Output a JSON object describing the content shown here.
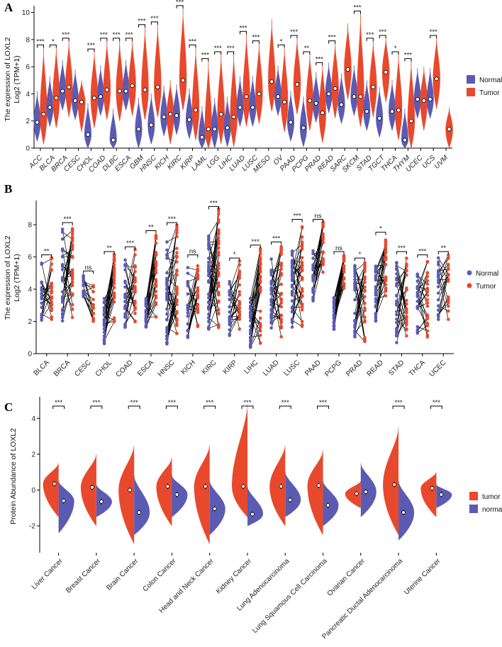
{
  "colors": {
    "normal": "#5b5bb3",
    "tumor": "#e8492c",
    "line": "#000000"
  },
  "chart_data": [
    {
      "panel": "A",
      "type": "violin",
      "ylabel_line1": "The expression of LOXL2",
      "ylabel_line2": "Log2 (TPM+1)",
      "ylim": [
        0,
        10.5
      ],
      "yticks": [
        0,
        2,
        4,
        6,
        8,
        10
      ],
      "legend": [
        "Normal",
        "Tumor"
      ],
      "legend_position": "right",
      "categories": [
        "ACC",
        "BLCA",
        "BRCA",
        "CESC",
        "CHOL",
        "COAD",
        "DLBC",
        "ESCA",
        "GBM",
        "HNSC",
        "KICH",
        "KIRC",
        "KIRP",
        "LAML",
        "LGG",
        "LIHC",
        "LUAD",
        "LUSC",
        "MESO",
        "OV",
        "PAAD",
        "PCPG",
        "PRAD",
        "READ",
        "SARC",
        "SKCM",
        "STAD",
        "TGCT",
        "THCA",
        "THYM",
        "UCEC",
        "UCS",
        "UVM"
      ],
      "normal_median": [
        1.9,
        3.0,
        4.2,
        3.5,
        1.0,
        3.8,
        0.6,
        4.2,
        1.4,
        1.7,
        2.3,
        2.4,
        2.1,
        0.8,
        1.4,
        1.5,
        3.0,
        3.0,
        null,
        3.8,
        1.9,
        1.5,
        3.3,
        4.0,
        3.2,
        3.8,
        2.7,
        2.2,
        2.7,
        0.6,
        3.6,
        3.6,
        null
      ],
      "tumor_median": [
        2.5,
        3.7,
        4.5,
        3.4,
        3.7,
        4.3,
        4.2,
        4.6,
        4.3,
        4.5,
        2.5,
        5.0,
        2.8,
        1.4,
        2.5,
        2.3,
        3.8,
        4.0,
        4.9,
        3.4,
        4.7,
        3.5,
        2.6,
        4.4,
        5.8,
        3.8,
        4.5,
        5.6,
        2.8,
        2.0,
        3.5,
        5.1,
        1.4
      ],
      "tumor_top": [
        7.5,
        7.5,
        8.0,
        5.0,
        7.2,
        8.0,
        8.0,
        8.0,
        9.0,
        9.2,
        5.0,
        10.4,
        7.5,
        6.5,
        7.0,
        7.0,
        8.5,
        7.8,
        9.5,
        7.5,
        8.2,
        7.0,
        6.2,
        7.8,
        9.2,
        10.0,
        8.0,
        8.2,
        7.0,
        6.5,
        6.0,
        8.2,
        3.0
      ],
      "significance": [
        "***",
        "*",
        "***",
        "",
        "***",
        "***",
        "***",
        "***",
        "***",
        "***",
        "",
        "***",
        "***",
        "***",
        "***",
        "***",
        "***",
        "***",
        "",
        "*",
        "***",
        "**",
        "***",
        "***",
        "",
        "***",
        "***",
        "***",
        "*",
        "***",
        "",
        "***",
        ""
      ]
    },
    {
      "panel": "B",
      "type": "paired-scatter",
      "ylabel_line1": "The expression of LOXL2",
      "ylabel_line2": "Log2 (TPM+1)",
      "ylim": [
        0,
        9.5
      ],
      "yticks": [
        0,
        2,
        4,
        6,
        8
      ],
      "legend": [
        "Normal",
        "Tumor"
      ],
      "legend_position": "right",
      "categories": [
        "BLCA",
        "BRCA",
        "CESC",
        "CHOL",
        "COAD",
        "ESCA",
        "HNSC",
        "KICH",
        "KIRC",
        "KIRP",
        "LIHC",
        "LUAD",
        "LUSC",
        "PAAD",
        "PCPG",
        "PRAD",
        "READ",
        "STAD",
        "THCA",
        "UCEC"
      ],
      "normal_range": [
        [
          1.8,
          5.8
        ],
        [
          2.0,
          8.0
        ],
        [
          3.5,
          5.0
        ],
        [
          0.6,
          3.5
        ],
        [
          1.5,
          6.0
        ],
        [
          1.5,
          3.5
        ],
        [
          0.6,
          7.2
        ],
        [
          1.0,
          5.5
        ],
        [
          1.5,
          7.5
        ],
        [
          1.0,
          4.5
        ],
        [
          0.2,
          3.5
        ],
        [
          1.5,
          6.0
        ],
        [
          1.5,
          6.5
        ],
        [
          3.2,
          6.5
        ],
        [
          1.5,
          3.5
        ],
        [
          1.0,
          5.5
        ],
        [
          2.0,
          5.5
        ],
        [
          0.6,
          5.8
        ],
        [
          1.0,
          5.0
        ],
        [
          2.0,
          6.0
        ]
      ],
      "tumor_range": [
        [
          1.8,
          6.0
        ],
        [
          2.0,
          7.8
        ],
        [
          2.0,
          4.5
        ],
        [
          1.5,
          6.2
        ],
        [
          1.8,
          6.5
        ],
        [
          2.0,
          7.5
        ],
        [
          1.2,
          8.0
        ],
        [
          1.2,
          6.0
        ],
        [
          1.5,
          9.0
        ],
        [
          1.5,
          5.8
        ],
        [
          0.6,
          6.6
        ],
        [
          1.0,
          6.8
        ],
        [
          1.5,
          8.2
        ],
        [
          5.0,
          8.2
        ],
        [
          4.0,
          6.2
        ],
        [
          0.6,
          5.8
        ],
        [
          3.5,
          7.4
        ],
        [
          1.0,
          6.2
        ],
        [
          1.0,
          6.0
        ],
        [
          2.0,
          6.2
        ]
      ],
      "significance": [
        "**",
        "***",
        "ns",
        "**",
        "***",
        "**",
        "***",
        "ns",
        "***",
        "*",
        "***",
        "***",
        "***",
        "ns",
        "ns",
        "*",
        "*",
        "***",
        "***",
        "**"
      ]
    },
    {
      "panel": "C",
      "type": "split-violin",
      "ylabel": "Protein Abundance of LOXL2",
      "ylim": [
        -3.5,
        5.2
      ],
      "yticks": [
        -2,
        0,
        2,
        4
      ],
      "legend": [
        "tumor",
        "normal"
      ],
      "legend_position": "right",
      "categories": [
        "Liver Cancer",
        "Breast Cancer",
        "Brain Cancer",
        "Colon Cancer",
        "Head and Neck Cancer",
        "Kidney Cancer",
        "Lung Adenocarcinoma",
        "Lung Squamous Cell Carcinoma",
        "Ovarian Cancer",
        "Pancreatic Ductal Adenocarcinoma",
        "Uterine Cancer"
      ],
      "tumor_mean": [
        0.35,
        0.15,
        0.0,
        0.2,
        0.2,
        0.2,
        0.2,
        0.25,
        -0.2,
        0.3,
        0.1
      ],
      "normal_mean": [
        -0.6,
        -0.65,
        -1.25,
        -0.25,
        -1.05,
        -1.35,
        -0.55,
        -0.85,
        -0.1,
        -1.25,
        -0.25
      ],
      "tumor_top": [
        1.5,
        2.0,
        2.5,
        1.8,
        2.5,
        4.8,
        2.5,
        2.2,
        0.5,
        3.5,
        1.0
      ],
      "tumor_bottom": [
        -1.5,
        -2.0,
        -3.0,
        -2.0,
        -3.0,
        -1.5,
        -2.0,
        -2.5,
        -1.0,
        -2.5,
        -1.5
      ],
      "normal_top": [
        0.5,
        0.3,
        0.8,
        0.8,
        0.5,
        0.2,
        1.0,
        0.5,
        1.5,
        0.5,
        0.3
      ],
      "normal_bottom": [
        -2.4,
        -1.5,
        -2.5,
        -1.5,
        -2.5,
        -2.0,
        -1.5,
        -2.0,
        -1.5,
        -2.8,
        -1.0
      ],
      "significance": [
        "***",
        "***",
        "***",
        "***",
        "***",
        "***",
        "***",
        "***",
        "",
        "***",
        "***"
      ]
    }
  ]
}
